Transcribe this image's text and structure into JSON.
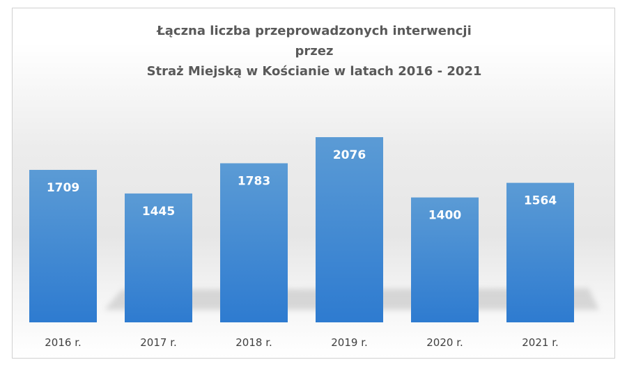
{
  "chart_data": {
    "type": "bar",
    "title_lines": [
      "Łączna liczba przeprowadzonych interwencji",
      "przez",
      "Straż Miejską w Kościanie w latach 2016 - 2021"
    ],
    "categories": [
      "2016 r.",
      "2017 r.",
      "2018 r.",
      "2019 r.",
      "2020 r.",
      "2021 r."
    ],
    "values": [
      1709,
      1445,
      1783,
      2076,
      1400,
      1564
    ],
    "xlabel": "",
    "ylabel": "",
    "ylim": [
      0,
      2076
    ],
    "grid": false,
    "legend": false,
    "data_labels": "inside-top",
    "colors": {
      "bar_top": "#5b9bd5",
      "bar_bottom": "#2e7bd0",
      "data_label": "#ffffff",
      "tick_label": "#404040",
      "title": "#595959"
    }
  }
}
